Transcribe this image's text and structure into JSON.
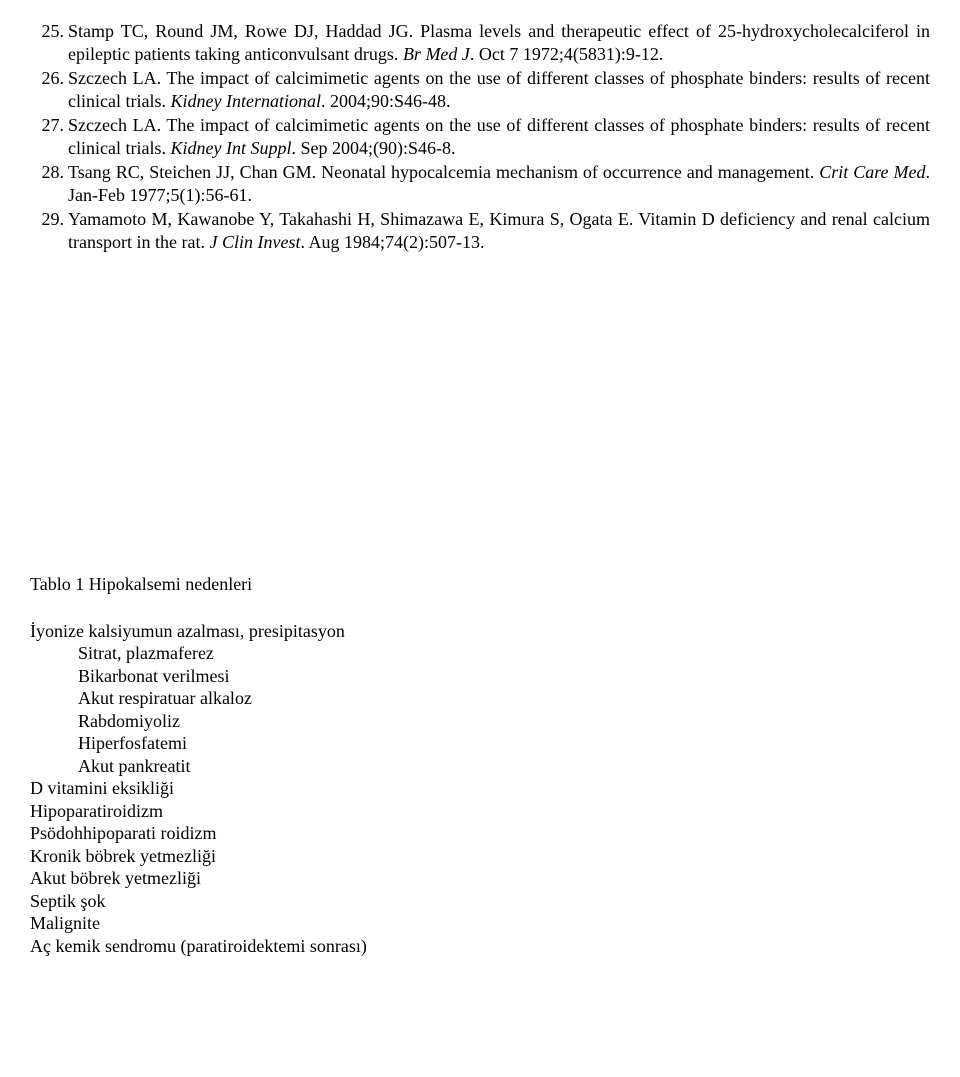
{
  "references": [
    {
      "num": "25.",
      "parts": [
        {
          "t": "Stamp TC, Round JM, Rowe DJ, Haddad JG. Plasma levels and therapeutic effect of 25-hydroxycholecalciferol in epileptic patients taking anticonvulsant drugs. ",
          "i": false
        },
        {
          "t": "Br Med J",
          "i": true
        },
        {
          "t": ". Oct 7 1972;4(5831):9-12.",
          "i": false
        }
      ]
    },
    {
      "num": "26.",
      "parts": [
        {
          "t": "Szczech LA. The impact of calcimimetic agents on the use of different classes of phosphate binders: results of recent clinical trials. ",
          "i": false
        },
        {
          "t": "Kidney International",
          "i": true
        },
        {
          "t": ". 2004;90:S46-48.",
          "i": false
        }
      ]
    },
    {
      "num": "27.",
      "parts": [
        {
          "t": "Szczech LA. The impact of calcimimetic agents on the use of different classes of phosphate binders: results of recent clinical trials. ",
          "i": false
        },
        {
          "t": "Kidney Int Suppl",
          "i": true
        },
        {
          "t": ". Sep 2004;(90):S46-8.",
          "i": false
        }
      ]
    },
    {
      "num": "28.",
      "parts": [
        {
          "t": "Tsang RC, Steichen JJ, Chan GM. Neonatal hypocalcemia mechanism of occurrence and management. ",
          "i": false
        },
        {
          "t": "Crit Care Med",
          "i": true
        },
        {
          "t": ". Jan-Feb 1977;5(1):56-61.",
          "i": false
        }
      ]
    },
    {
      "num": "29.",
      "parts": [
        {
          "t": "Yamamoto M, Kawanobe Y, Takahashi H, Shimazawa E, Kimura S, Ogata E. Vitamin D deficiency and renal calcium transport in the rat. ",
          "i": false
        },
        {
          "t": "J Clin Invest",
          "i": true
        },
        {
          "t": ". Aug 1984;74(2):507-13.",
          "i": false
        }
      ]
    }
  ],
  "table": {
    "title": "Tablo 1 Hipokalsemi nedenleri",
    "groups": [
      {
        "heading": "İyonize kalsiyumun azalması, presipitasyon",
        "subs": [
          "Sitrat, plazmaferez",
          "Bikarbonat verilmesi",
          "Akut respiratuar alkaloz",
          "Rabdomiyoliz",
          "Hiperfosfatemi",
          "Akut pankreatit"
        ]
      },
      {
        "heading": "D vitamini eksikliği",
        "subs": []
      },
      {
        "heading": "Hipoparatiroidizm",
        "subs": []
      },
      {
        "heading": "Psödohhipoparati roidizm",
        "subs": []
      },
      {
        "heading": "Kronik böbrek yetmezliği",
        "subs": []
      },
      {
        "heading": "Akut böbrek yetmezliği",
        "subs": []
      },
      {
        "heading": "Septik şok",
        "subs": []
      },
      {
        "heading": "Malignite",
        "subs": []
      },
      {
        "heading": "Aç kemik sendromu (paratiroidektemi sonrası)",
        "subs": []
      }
    ]
  }
}
